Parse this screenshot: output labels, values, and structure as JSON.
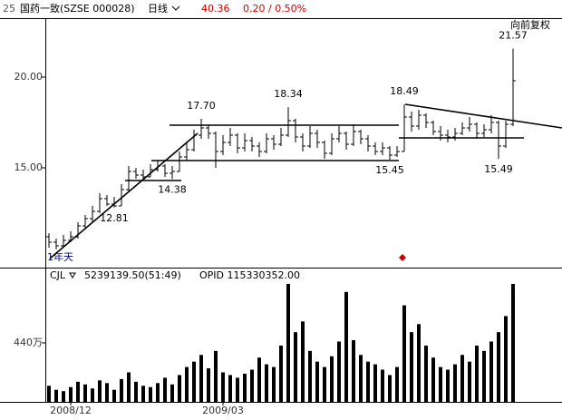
{
  "header": {
    "code": "25",
    "name": "国药一致(SZSE 000028)",
    "period": "日线",
    "price": "40.36",
    "change": "0.20 / 0.50%"
  },
  "chart_data": {
    "type": "ohlc",
    "x": [
      null,
      null,
      null,
      "2008/12",
      null,
      null,
      null,
      null,
      null,
      null,
      null,
      null,
      null,
      null,
      null,
      null,
      null,
      null,
      null,
      null,
      null,
      null,
      null,
      null,
      "2009/03",
      null,
      null,
      null,
      null,
      null,
      null,
      null,
      null,
      null,
      null,
      null,
      null,
      null,
      null,
      null,
      null,
      null,
      null,
      null,
      null,
      null,
      null,
      null,
      null,
      null,
      null,
      null,
      null,
      null,
      null,
      null,
      null,
      null,
      null,
      null,
      null,
      null,
      null,
      null,
      null
    ],
    "open": [
      11.2,
      10.9,
      10.7,
      11.0,
      11.2,
      11.8,
      12.2,
      12.6,
      13.3,
      13.0,
      12.9,
      13.8,
      14.8,
      14.6,
      14.5,
      14.9,
      15.1,
      14.7,
      14.8,
      15.6,
      16.0,
      16.8,
      17.2,
      16.9,
      15.9,
      16.4,
      16.8,
      16.1,
      16.5,
      16.2,
      15.9,
      16.6,
      16.3,
      16.8,
      17.6,
      16.7,
      16.2,
      16.9,
      16.4,
      15.8,
      16.6,
      16.9,
      16.3,
      17.0,
      16.6,
      16.2,
      15.9,
      16.1,
      15.7,
      15.9,
      17.8,
      17.3,
      17.9,
      17.5,
      17.0,
      16.8,
      16.7,
      16.9,
      17.2,
      17.4,
      16.9,
      17.1,
      17.5,
      16.2,
      17.4
    ],
    "high": [
      11.4,
      11.1,
      11.3,
      11.5,
      12.0,
      12.4,
      12.9,
      13.6,
      13.5,
      13.4,
      14.1,
      15.1,
      15.0,
      14.9,
      15.2,
      15.4,
      15.2,
      15.1,
      15.9,
      16.4,
      17.1,
      17.7,
      17.4,
      17.0,
      16.8,
      17.2,
      16.9,
      16.9,
      16.7,
      16.4,
      16.9,
      16.8,
      17.2,
      18.34,
      17.7,
      16.9,
      17.3,
      17.1,
      16.5,
      16.9,
      17.3,
      17.0,
      17.4,
      17.1,
      16.8,
      16.4,
      16.4,
      16.2,
      16.2,
      18.49,
      18.1,
      18.2,
      18.0,
      17.6,
      17.3,
      17.1,
      17.2,
      17.5,
      17.8,
      17.5,
      17.4,
      17.9,
      17.6,
      17.6,
      21.57
    ],
    "low": [
      10.6,
      10.5,
      10.6,
      10.9,
      11.1,
      11.6,
      12.0,
      12.5,
      12.9,
      12.81,
      12.9,
      13.7,
      14.4,
      14.4,
      14.5,
      14.8,
      14.5,
      14.38,
      14.8,
      15.4,
      15.9,
      16.6,
      16.6,
      15.0,
      15.7,
      16.2,
      15.8,
      15.9,
      15.9,
      15.6,
      15.8,
      16.0,
      16.2,
      16.7,
      16.4,
      15.9,
      16.1,
      16.1,
      15.5,
      15.7,
      16.4,
      16.0,
      16.2,
      16.3,
      15.9,
      15.7,
      15.7,
      15.45,
      15.6,
      15.9,
      17.0,
      17.1,
      17.2,
      16.8,
      16.5,
      16.4,
      16.5,
      16.8,
      17.0,
      16.6,
      16.7,
      16.9,
      15.49,
      16.1,
      17.3
    ],
    "close": [
      10.9,
      10.7,
      11.0,
      11.2,
      11.8,
      12.2,
      12.6,
      13.3,
      13.0,
      12.9,
      13.8,
      14.8,
      14.6,
      14.5,
      14.9,
      15.1,
      14.7,
      14.8,
      15.6,
      16.0,
      16.8,
      17.2,
      16.9,
      15.9,
      16.4,
      16.8,
      16.1,
      16.5,
      16.2,
      15.9,
      16.6,
      16.3,
      16.8,
      17.6,
      16.7,
      16.2,
      16.9,
      16.4,
      15.8,
      16.6,
      16.9,
      16.3,
      17.0,
      16.6,
      16.2,
      15.9,
      16.1,
      15.7,
      15.9,
      17.8,
      17.3,
      17.9,
      17.5,
      17.0,
      16.8,
      16.7,
      16.9,
      17.2,
      17.4,
      16.9,
      17.1,
      17.5,
      16.2,
      17.4,
      19.8
    ],
    "color": "#000000",
    "ylim": [
      9.5,
      23.25
    ],
    "yticks": [
      {
        "value": 15,
        "label": "15.00"
      },
      {
        "value": 20,
        "label": "20.00"
      }
    ],
    "annotations": [
      {
        "text": "12.81",
        "at": 9,
        "value": 12.81
      },
      {
        "text": "14.38",
        "at": 17,
        "value": 14.38
      },
      {
        "text": "17.70",
        "at": 21,
        "value": 17.7
      },
      {
        "text": "18.34",
        "at": 33,
        "value": 18.34
      },
      {
        "text": "15.45",
        "at": 47,
        "value": 15.45
      },
      {
        "text": "18.49",
        "at": 49,
        "value": 18.49
      },
      {
        "text": "15.49",
        "at": 62,
        "value": 15.49
      },
      {
        "text": "21.57",
        "at": 64,
        "value": 21.57
      }
    ],
    "adjust_label": "向前复权",
    "period_label": "1年天",
    "volume": {
      "type": "bar",
      "name": "CJL",
      "stats": "5239139.50(51:49)",
      "opid": "OPID 115330352.00",
      "values": [
        120,
        90,
        80,
        110,
        150,
        130,
        100,
        160,
        140,
        90,
        170,
        220,
        150,
        120,
        110,
        140,
        180,
        130,
        200,
        260,
        300,
        350,
        250,
        380,
        220,
        200,
        180,
        210,
        240,
        330,
        280,
        260,
        420,
        880,
        520,
        600,
        380,
        300,
        260,
        340,
        450,
        820,
        460,
        350,
        300,
        280,
        240,
        200,
        260,
        720,
        520,
        580,
        420,
        330,
        260,
        240,
        280,
        350,
        300,
        420,
        380,
        450,
        520,
        640,
        880
      ],
      "ylim": [
        0,
        900
      ],
      "yticks": [
        {
          "value": 440,
          "label": "440万"
        }
      ]
    }
  }
}
